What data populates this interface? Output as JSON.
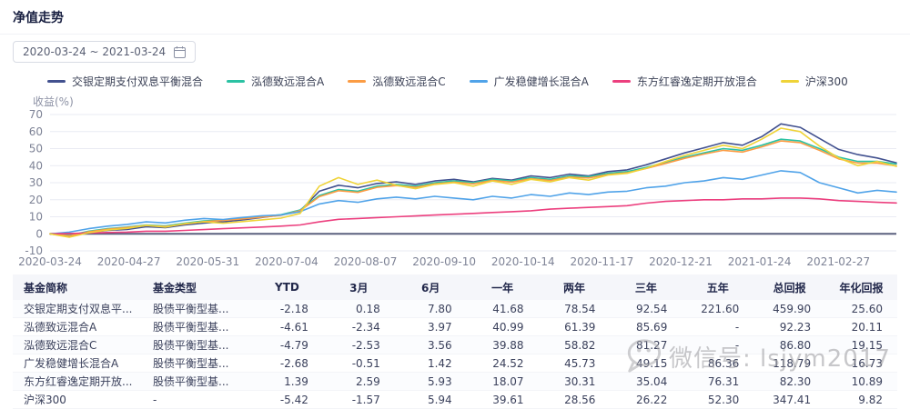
{
  "page": {
    "title": "净值走势"
  },
  "date_range": {
    "value": "2020-03-24  ~  2021-03-24"
  },
  "icons": {
    "calendar": "calendar-icon",
    "wechat": "wechat-icon"
  },
  "colors": {
    "grid": "#e9ebf3",
    "zero_line": "#5b607f",
    "tick_text": "#7e8396",
    "header_bg": "#f5f6fa",
    "title_text": "#1a2142"
  },
  "watermark": {
    "text": "微信号: lsjym2017"
  },
  "chart_data": {
    "type": "line",
    "title": "净值走势",
    "ylabel": "收益(%)",
    "ylim": [
      -10,
      70
    ],
    "yticks": [
      70,
      60,
      50,
      40,
      30,
      20,
      10,
      0,
      -10
    ],
    "grid": true,
    "zero_line": true,
    "legend_position": "top",
    "xticklabels": [
      "2020-03-24",
      "2020-04-27",
      "2020-05-31",
      "2020-07-04",
      "2020-08-07",
      "2020-09-10",
      "2020-10-14",
      "2020-11-17",
      "2020-12-21",
      "2021-01-24",
      "2021-02-27"
    ],
    "x_total_days": 365,
    "x_tick_step_days": 34,
    "series": [
      {
        "name": "交银定期支付双息平衡混合",
        "color": "#42518f",
        "values": [
          0,
          -1.5,
          0.8,
          2,
          2.6,
          4.2,
          3.6,
          5.2,
          6.3,
          7,
          8.2,
          9.6,
          11,
          13.5,
          25,
          28.5,
          27,
          29.5,
          30.5,
          29,
          31,
          32,
          30.5,
          32.5,
          31.5,
          34,
          33,
          35,
          34,
          36.5,
          37.5,
          40.5,
          44,
          47.5,
          50.5,
          53.5,
          52,
          57,
          64.5,
          62.5,
          56,
          49.5,
          46.5,
          44.5,
          41.7
        ]
      },
      {
        "name": "泓德致远混合A",
        "color": "#2bc2a3",
        "values": [
          0,
          -1,
          1.5,
          3,
          4,
          5.2,
          4.6,
          6.2,
          7.6,
          8.2,
          9.2,
          10.2,
          11.2,
          14,
          22.5,
          26,
          25,
          28,
          29,
          28,
          30,
          31,
          30,
          32,
          31,
          33,
          32,
          34,
          33.5,
          35.5,
          36.5,
          39,
          42,
          45,
          47.5,
          50,
          49,
          52,
          55.5,
          54.5,
          50,
          45,
          42.5,
          42.5,
          41
        ]
      },
      {
        "name": "泓德致远混合C",
        "color": "#fb9c44",
        "values": [
          0,
          -1.2,
          1.2,
          2.7,
          3.7,
          4.9,
          4.3,
          5.8,
          7.2,
          7.8,
          8.8,
          9.8,
          10.8,
          13.6,
          21.8,
          25.3,
          24.3,
          27.3,
          28.3,
          27.3,
          29.3,
          30.3,
          29.3,
          31.3,
          30.3,
          32.3,
          31.3,
          33.3,
          32.8,
          34.8,
          35.8,
          38.3,
          41.3,
          44.3,
          46.8,
          49,
          48,
          51,
          54.5,
          53.5,
          49,
          44,
          41.5,
          41.5,
          39.9
        ]
      },
      {
        "name": "广发稳健增长混合A",
        "color": "#50a3e9",
        "values": [
          0,
          1,
          3,
          4.5,
          5.5,
          7,
          6.4,
          8,
          9,
          8.4,
          9.6,
          10.6,
          11,
          13,
          17.5,
          19.5,
          18.5,
          20.5,
          21.5,
          20.5,
          22,
          21,
          20,
          22,
          21,
          23,
          22,
          24,
          23,
          24.5,
          25,
          27,
          28,
          30,
          31,
          33,
          32,
          34.5,
          37,
          36,
          30,
          27,
          24,
          25.5,
          24.5
        ]
      },
      {
        "name": "东方红睿逸定期开放混合",
        "color": "#ec3f7e",
        "values": [
          0,
          0.2,
          0.5,
          0.8,
          1,
          1.5,
          1.5,
          2,
          2.5,
          3,
          3.5,
          4,
          4.5,
          5.2,
          7,
          8.5,
          9,
          9.5,
          10,
          10.5,
          11,
          11.5,
          12,
          12.5,
          13,
          13.5,
          14.5,
          15,
          15.5,
          16,
          16.5,
          18,
          19,
          19.5,
          20,
          20,
          20.5,
          20.5,
          21,
          21,
          20.5,
          19.5,
          19,
          18.5,
          18.1
        ]
      },
      {
        "name": "沪深300",
        "color": "#efd338",
        "values": [
          0,
          -2,
          0.6,
          2.2,
          3.2,
          5,
          4,
          6,
          7,
          6.2,
          7.2,
          8.2,
          9.2,
          12,
          28,
          33,
          29,
          31.5,
          28.5,
          26.5,
          29,
          30,
          28,
          31,
          29,
          32,
          30.5,
          33,
          31.5,
          34.5,
          35.5,
          38.5,
          42.5,
          46,
          49,
          52,
          50,
          55.5,
          62,
          60,
          51.5,
          44.5,
          40,
          42.5,
          39.6
        ]
      }
    ]
  },
  "table": {
    "headers": [
      "基金简称",
      "基金类型",
      "YTD",
      "3月",
      "6月",
      "一年",
      "两年",
      "三年",
      "五年",
      "总回报",
      "年化回报"
    ],
    "rows": [
      [
        "交银定期支付双息平...",
        "股债平衡型基...",
        "-2.18",
        "0.18",
        "7.80",
        "41.68",
        "78.54",
        "92.54",
        "221.60",
        "459.90",
        "25.60"
      ],
      [
        "泓德致远混合A",
        "股债平衡型基...",
        "-4.61",
        "-2.34",
        "3.97",
        "40.99",
        "61.39",
        "85.69",
        "-",
        "92.23",
        "20.11"
      ],
      [
        "泓德致远混合C",
        "股债平衡型基...",
        "-4.79",
        "-2.53",
        "3.56",
        "39.88",
        "58.82",
        "81.27",
        "-",
        "86.80",
        "19.15"
      ],
      [
        "广发稳健增长混合A",
        "股债平衡型基...",
        "-2.68",
        "-0.51",
        "1.42",
        "24.52",
        "45.73",
        "49.15",
        "86.36",
        "118.79",
        "16.73"
      ],
      [
        "东方红睿逸定期开放...",
        "股债平衡型基...",
        "1.39",
        "2.59",
        "5.93",
        "18.07",
        "30.31",
        "35.04",
        "76.31",
        "82.30",
        "10.89"
      ],
      [
        "沪深300",
        "-",
        "-5.42",
        "-1.57",
        "5.94",
        "39.61",
        "28.56",
        "26.22",
        "52.30",
        "347.41",
        "9.82"
      ]
    ]
  }
}
